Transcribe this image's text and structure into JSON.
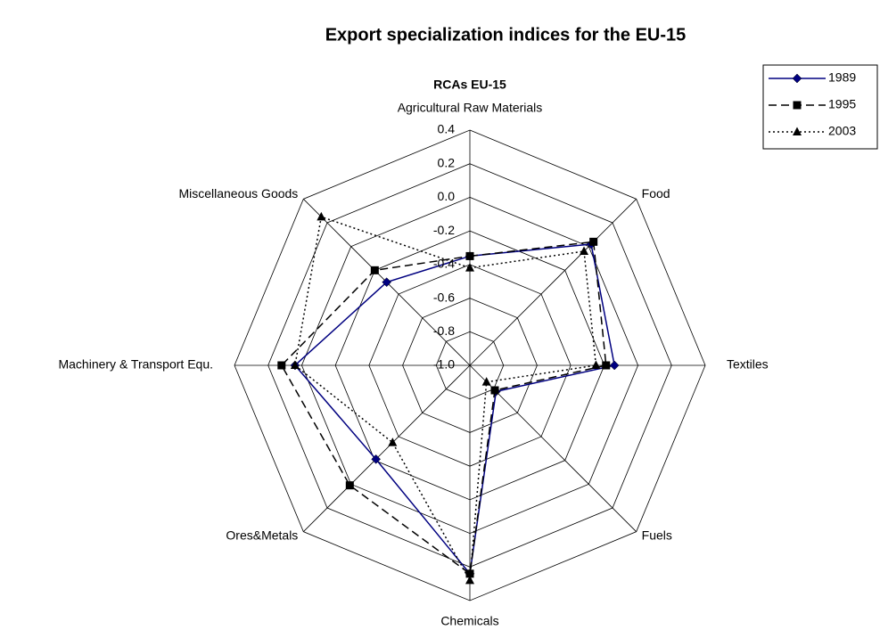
{
  "chart_data": {
    "type": "radar",
    "title": "Export specialization indices for the EU-15",
    "subtitle": "RCAs EU-15",
    "categories": [
      "Agricultural Raw Materials",
      "Food",
      "Textiles",
      "Fuels",
      "Chemicals",
      "Ores&Metals",
      "Machinery & Transport Equ.",
      "Miscellaneous Goods"
    ],
    "series": [
      {
        "name": "1989",
        "color": "#000080",
        "line_style": "solid",
        "marker": "diamond",
        "values": [
          -0.35,
          0.02,
          -0.14,
          -0.78,
          0.24,
          -0.21,
          0.04,
          -0.3
        ]
      },
      {
        "name": "1995",
        "color": "#000000",
        "line_style": "dashed",
        "marker": "square",
        "values": [
          -0.35,
          0.04,
          -0.19,
          -0.79,
          0.24,
          0.01,
          0.12,
          -0.2
        ]
      },
      {
        "name": "2003",
        "color": "#000000",
        "line_style": "dotted",
        "marker": "triangle",
        "values": [
          -0.42,
          -0.04,
          -0.25,
          -0.86,
          0.28,
          -0.35,
          0.04,
          0.25
        ]
      }
    ],
    "ylim": [
      -1.0,
      0.4
    ],
    "yticks": [
      {
        "value": -1.0,
        "label": "-1.0"
      },
      -0.8,
      -0.6,
      -0.4,
      -0.2,
      {
        "value": 0.0,
        "label": "0.0"
      },
      0.2,
      0.4
    ],
    "grid": true,
    "legend": "top-right"
  }
}
